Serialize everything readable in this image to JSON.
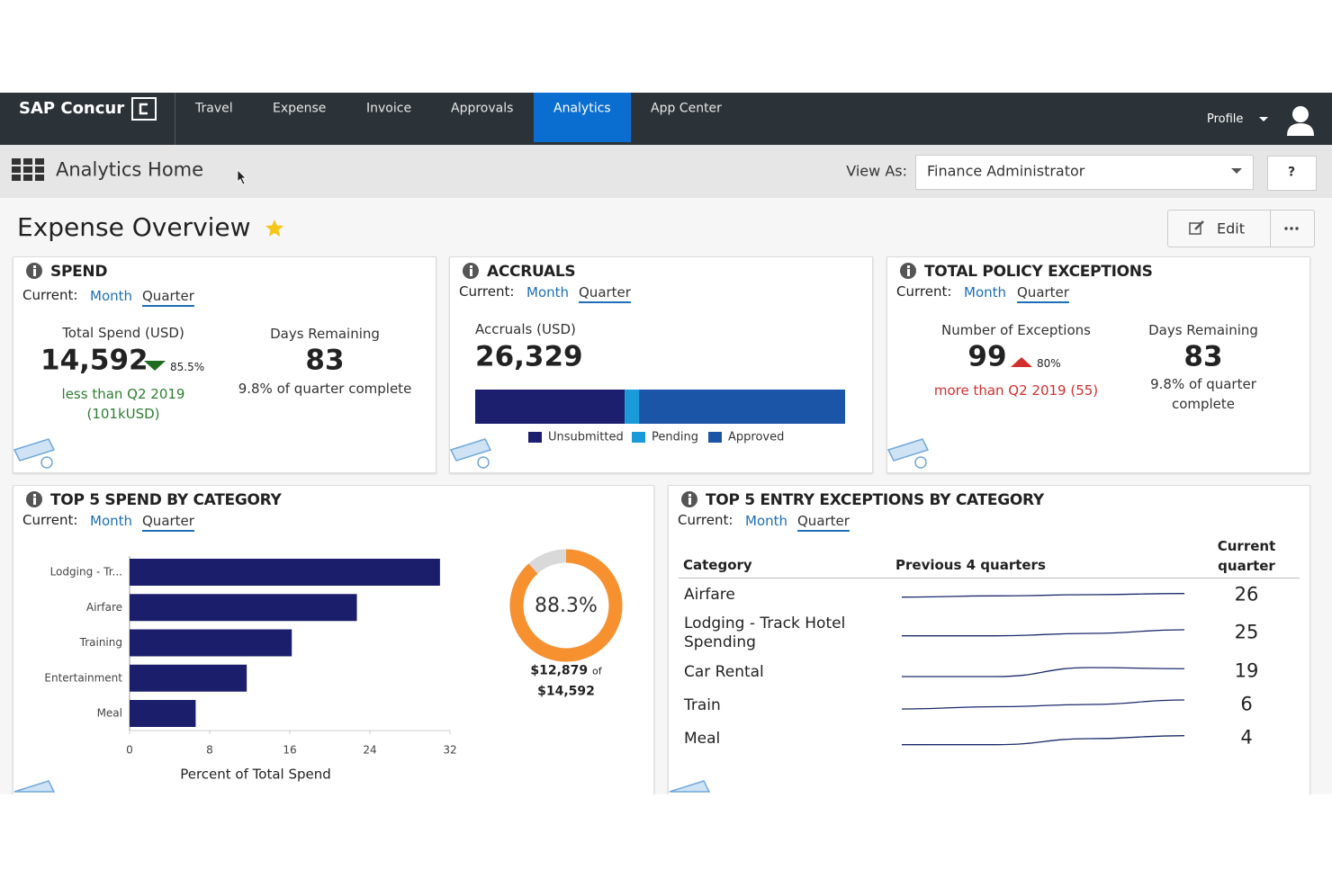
{
  "nav": {
    "brand": "SAP Concur",
    "items": [
      "Travel",
      "Expense",
      "Invoice",
      "Approvals",
      "Analytics",
      "App Center"
    ],
    "profile": "Profile"
  },
  "subheader": {
    "title": "Analytics Home",
    "view_as_label": "View As:",
    "view_as_value": "Finance Administrator",
    "help": "?"
  },
  "page": {
    "title": "Expense Overview",
    "edit": "Edit"
  },
  "spend": {
    "title": "SPEND",
    "current_label": "Current:",
    "periods": [
      "Month",
      "Quarter"
    ],
    "total_label": "Total Spend (USD)",
    "total": "14,592",
    "change": "85.5%",
    "comparison": [
      "less than Q2 2019",
      "(101kUSD)"
    ],
    "days_label": "Days Remaining",
    "days": 83,
    "progress": "9.8% of quarter complete"
  },
  "accruals": {
    "title": "ACCRUALS",
    "current_label": "Current:",
    "periods": [
      "Month",
      "Quarter"
    ],
    "total_label": "Accruals (USD)",
    "total": "26,329",
    "bar": {
      "type": "stacked-bar",
      "categories": [
        "Unsubmitted",
        "Pending",
        "Approved"
      ],
      "values": [
        40.4,
        3.9,
        55.7
      ],
      "colors": [
        "#1b1f6e",
        "#1a9ad9",
        "#1a55a8"
      ],
      "xlim": [
        0,
        100
      ]
    }
  },
  "exceptions": {
    "title": "TOTAL POLICY EXCEPTIONS",
    "current_label": "Current:",
    "periods": [
      "Month",
      "Quarter"
    ],
    "count_label": "Number of Exceptions",
    "count": 99,
    "change": "80%",
    "comparison": "more than Q2 2019 (55)",
    "days_label": "Days Remaining",
    "days": 83,
    "progress": "9.8% of quarter complete"
  },
  "top_spend": {
    "title": "TOP 5 SPEND BY CATEGORY",
    "current_label": "Current:",
    "periods": [
      "Month",
      "Quarter"
    ],
    "chart": {
      "type": "bar",
      "orientation": "horizontal",
      "categories": [
        "Lodging - Tr...",
        "Airfare",
        "Training",
        "Entertainment",
        "Meal"
      ],
      "values": [
        31.0,
        22.7,
        16.2,
        11.7,
        6.6
      ],
      "color": "#1b1f6b",
      "xlim": [
        0,
        32
      ],
      "xticks": [
        0,
        8,
        16,
        24,
        32
      ],
      "xlabel": "Percent of Total Spend"
    },
    "donut": {
      "type": "pie",
      "values": [
        88.3
      ],
      "value_labels": [
        "88.3%"
      ],
      "range": [
        0,
        100
      ],
      "color": "#f7902f",
      "track_color": "#d9d9d9",
      "amount": "$12,879",
      "of": "of",
      "total": "$14,592"
    }
  },
  "top_exceptions": {
    "title": "TOP 5 ENTRY EXCEPTIONS BY CATEGORY",
    "current_label": "Current:",
    "periods": [
      "Month",
      "Quarter"
    ],
    "columns": [
      "Category",
      "Previous 4 quarters",
      "Current quarter"
    ],
    "trend_color": "#1b2a6b",
    "rows": [
      {
        "category": "Airfare",
        "trend": [
          22,
          23,
          24,
          25
        ],
        "trend_ylim": [
          15,
          30
        ],
        "current": 26
      },
      {
        "category": "Lodging - Track Hotel Spending",
        "trend": [
          19,
          19,
          21,
          24
        ],
        "trend_ylim": [
          15,
          30
        ],
        "current": 25
      },
      {
        "category": "Car Rental",
        "trend": [
          12,
          12,
          20,
          19
        ],
        "trend_ylim": [
          8,
          24
        ],
        "current": 19
      },
      {
        "category": "Train",
        "trend": [
          2,
          3,
          4,
          6
        ],
        "trend_ylim": [
          0,
          8
        ],
        "current": 6
      },
      {
        "category": "Meal",
        "trend": [
          1,
          1,
          3,
          4
        ],
        "trend_ylim": [
          0,
          6
        ],
        "current": 4
      }
    ]
  }
}
